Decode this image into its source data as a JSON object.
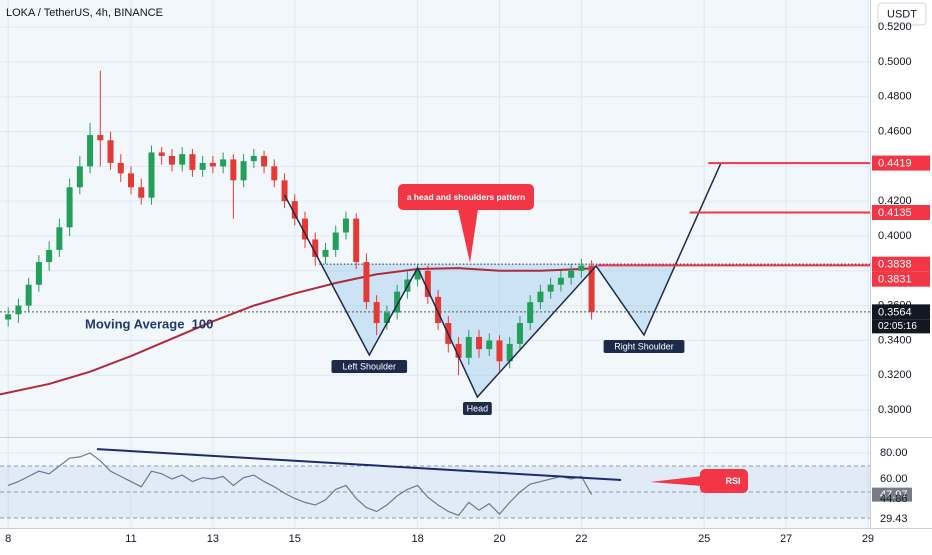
{
  "header": {
    "title": "LOKA / TetherUS, 4h, BINANCE",
    "currency": "USDT"
  },
  "chart_data": [
    {
      "type": "candlestick",
      "xlim": [
        7.8,
        29.05
      ],
      "xticks": [
        8,
        11,
        13,
        15,
        18,
        20,
        22,
        25,
        27,
        29
      ],
      "ylim": [
        0.2845,
        0.5356
      ],
      "yticks": [
        {
          "value": 0.3,
          "label": "0.3000"
        },
        {
          "value": 0.32,
          "label": "0.3200"
        },
        {
          "value": 0.34,
          "label": "0.3400"
        },
        {
          "value": 0.36,
          "label": "0.3600"
        },
        {
          "value": 0.38,
          "label": "0.3800"
        },
        {
          "value": 0.4,
          "label": "0.4000"
        },
        {
          "value": 0.42,
          "label": "0.4200"
        },
        {
          "value": 0.44,
          "label": "0.4400"
        },
        {
          "value": 0.46,
          "label": "0.4600"
        },
        {
          "value": 0.48,
          "label": "0.4800"
        },
        {
          "value": 0.5,
          "label": "0.5000"
        },
        {
          "value": 0.52,
          "label": "0.5200"
        }
      ],
      "grid": true,
      "up_color": "#22a05a",
      "down_color": "#e53935",
      "x": [
        8,
        8.25,
        8.5,
        8.75,
        9,
        9.25,
        9.5,
        9.75,
        10,
        10.25,
        10.5,
        10.75,
        11,
        11.25,
        11.5,
        11.75,
        12,
        12.25,
        12.5,
        12.75,
        13,
        13.25,
        13.5,
        13.75,
        14,
        14.25,
        14.5,
        14.75,
        15,
        15.25,
        15.5,
        15.75,
        16,
        16.25,
        16.5,
        16.75,
        17,
        17.25,
        17.5,
        17.75,
        18,
        18.25,
        18.5,
        18.75,
        19,
        19.25,
        19.5,
        19.75,
        20,
        20.25,
        20.5,
        20.75,
        21,
        21.25,
        21.5,
        21.75,
        22,
        22.25
      ],
      "open": [
        0.352,
        0.355,
        0.36,
        0.372,
        0.385,
        0.392,
        0.405,
        0.428,
        0.44,
        0.458,
        0.455,
        0.442,
        0.436,
        0.428,
        0.422,
        0.448,
        0.446,
        0.441,
        0.447,
        0.438,
        0.442,
        0.44,
        0.444,
        0.432,
        0.443,
        0.446,
        0.44,
        0.432,
        0.42,
        0.41,
        0.398,
        0.388,
        0.392,
        0.402,
        0.41,
        0.385,
        0.362,
        0.35,
        0.356,
        0.368,
        0.375,
        0.38,
        0.365,
        0.35,
        0.338,
        0.33,
        0.342,
        0.335,
        0.34,
        0.328,
        0.338,
        0.35,
        0.362,
        0.368,
        0.372,
        0.376,
        0.38,
        0.383
      ],
      "high": [
        0.359,
        0.364,
        0.376,
        0.389,
        0.397,
        0.41,
        0.433,
        0.446,
        0.465,
        0.495,
        0.46,
        0.447,
        0.44,
        0.433,
        0.452,
        0.451,
        0.45,
        0.451,
        0.45,
        0.446,
        0.446,
        0.448,
        0.447,
        0.447,
        0.45,
        0.449,
        0.444,
        0.436,
        0.424,
        0.414,
        0.402,
        0.396,
        0.406,
        0.414,
        0.413,
        0.39,
        0.366,
        0.36,
        0.372,
        0.38,
        0.384,
        0.383,
        0.369,
        0.354,
        0.342,
        0.346,
        0.346,
        0.344,
        0.343,
        0.342,
        0.354,
        0.366,
        0.372,
        0.376,
        0.38,
        0.384,
        0.387,
        0.386
      ],
      "low": [
        0.348,
        0.35,
        0.356,
        0.368,
        0.38,
        0.388,
        0.4,
        0.424,
        0.436,
        0.44,
        0.438,
        0.431,
        0.424,
        0.418,
        0.418,
        0.441,
        0.437,
        0.437,
        0.434,
        0.434,
        0.436,
        0.436,
        0.41,
        0.428,
        0.439,
        0.436,
        0.428,
        0.416,
        0.406,
        0.393,
        0.383,
        0.384,
        0.388,
        0.398,
        0.381,
        0.358,
        0.343,
        0.346,
        0.352,
        0.364,
        0.371,
        0.361,
        0.346,
        0.333,
        0.32,
        0.326,
        0.33,
        0.331,
        0.322,
        0.324,
        0.334,
        0.346,
        0.358,
        0.364,
        0.368,
        0.372,
        0.376,
        0.352
      ],
      "close": [
        0.355,
        0.36,
        0.372,
        0.385,
        0.392,
        0.405,
        0.428,
        0.44,
        0.458,
        0.455,
        0.442,
        0.436,
        0.428,
        0.422,
        0.448,
        0.446,
        0.441,
        0.447,
        0.438,
        0.442,
        0.44,
        0.444,
        0.432,
        0.443,
        0.446,
        0.44,
        0.432,
        0.42,
        0.41,
        0.398,
        0.388,
        0.392,
        0.402,
        0.41,
        0.385,
        0.362,
        0.35,
        0.356,
        0.368,
        0.375,
        0.38,
        0.365,
        0.35,
        0.338,
        0.33,
        0.342,
        0.335,
        0.34,
        0.328,
        0.338,
        0.35,
        0.362,
        0.368,
        0.372,
        0.376,
        0.38,
        0.383,
        0.3564
      ],
      "moving_average": {
        "name": "Moving Average  100",
        "color": "#b02a37",
        "x": [
          7.8,
          9,
          10,
          11,
          12,
          13,
          14,
          15,
          16,
          17,
          18,
          19,
          20,
          21,
          22,
          22.3
        ],
        "values": [
          0.309,
          0.315,
          0.322,
          0.331,
          0.341,
          0.351,
          0.36,
          0.367,
          0.373,
          0.378,
          0.381,
          0.3815,
          0.38,
          0.38,
          0.381,
          0.3815
        ]
      },
      "pattern": {
        "color": "#1e2a4a",
        "fill": "#9cc9ec",
        "x": [
          14.75,
          16.82,
          18.0,
          19.46,
          22.36,
          23.53,
          25.41
        ],
        "y": [
          0.4236,
          0.3316,
          0.3816,
          0.3075,
          0.3828,
          0.3431,
          0.442
        ],
        "point_labels": [
          null,
          "Left Shoulder",
          null,
          "Head",
          null,
          "Right Shoulder",
          null
        ]
      },
      "neckline": {
        "value": 0.3838,
        "x_start": 15.6
      },
      "target_lines": {
        "color": "#f23645",
        "values": [
          0.4419,
          0.4135,
          0.3831
        ],
        "x_start": [
          25.1,
          24.65,
          22.4
        ]
      },
      "price_tags": [
        {
          "value": 0.4419,
          "color": "#f23645"
        },
        {
          "value": 0.4135,
          "color": "#f23645"
        },
        {
          "value": 0.3838,
          "color": "#f23645"
        },
        {
          "value": 0.3831,
          "color": "#f23645"
        },
        {
          "value": 0.3564,
          "color": "#131722"
        }
      ],
      "last_price": {
        "value": 0.3564,
        "countdown": "02:05:16"
      },
      "callout": "a head and shoulders pattern"
    },
    {
      "type": "line",
      "xlim": [
        7.8,
        29.05
      ],
      "ylim": [
        24.6,
        90
      ],
      "yticks": [
        {
          "value": 80,
          "label": "80.00"
        },
        {
          "value": 60,
          "label": "60.00"
        }
      ],
      "levels": [
        70,
        50,
        30
      ],
      "color": "#6b7a8f",
      "x": [
        8,
        8.25,
        8.5,
        8.75,
        9,
        9.25,
        9.5,
        9.75,
        10,
        10.25,
        10.5,
        10.75,
        11,
        11.25,
        11.5,
        11.75,
        12,
        12.25,
        12.5,
        12.75,
        13,
        13.25,
        13.5,
        13.75,
        14,
        14.25,
        14.5,
        14.75,
        15,
        15.25,
        15.5,
        15.75,
        16,
        16.25,
        16.5,
        16.75,
        17,
        17.25,
        17.5,
        17.75,
        18,
        18.25,
        18.5,
        18.75,
        19,
        19.25,
        19.5,
        19.75,
        20,
        20.25,
        20.5,
        20.75,
        21,
        21.25,
        21.5,
        21.75,
        22,
        22.25
      ],
      "values": [
        55,
        58,
        62,
        66,
        64,
        70,
        76,
        77,
        80,
        74,
        66,
        62,
        58,
        54,
        66,
        64,
        60,
        63,
        58,
        61,
        60,
        62,
        55,
        61,
        63,
        58,
        54,
        49,
        45,
        42,
        40,
        44,
        52,
        55,
        45,
        38,
        35,
        40,
        47,
        52,
        55,
        46,
        40,
        35,
        32,
        42,
        36,
        41,
        33,
        42,
        50,
        56,
        58,
        60,
        62,
        60,
        62,
        47.97
      ],
      "trendline": {
        "color": "#1e2a6e",
        "x": [
          10.17,
          22.97
        ],
        "y": [
          83,
          59.2
        ]
      },
      "markers": [
        {
          "value": 47.97,
          "color": "#787b86"
        },
        {
          "value": 44.86
        },
        {
          "value": 29.43
        }
      ],
      "callout": "RSI"
    }
  ]
}
